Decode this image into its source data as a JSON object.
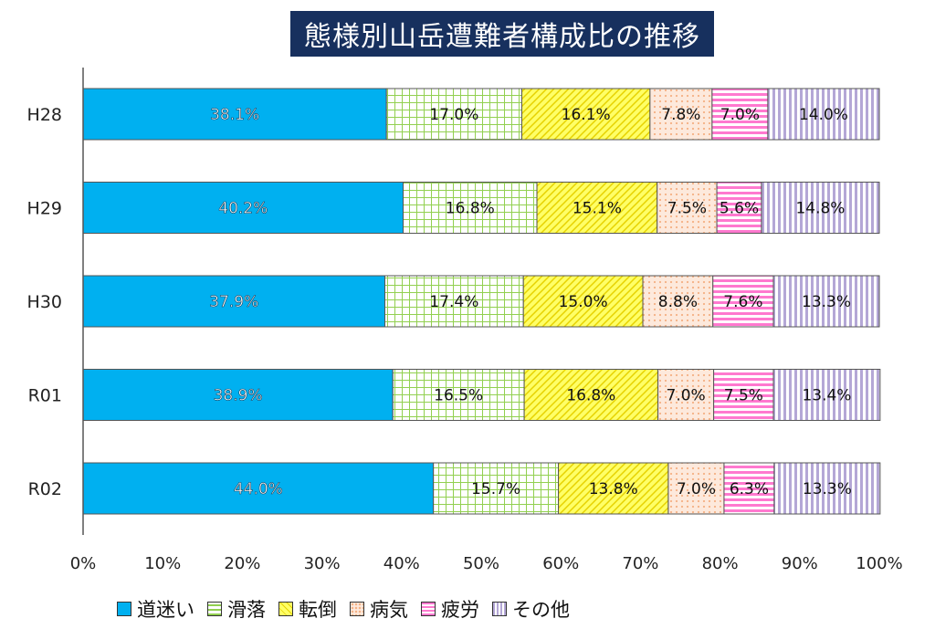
{
  "chart_data": {
    "type": "bar",
    "orientation": "horizontal",
    "stacked": true,
    "title": "態様別山岳遭難者構成比の推移",
    "categories": [
      "H28",
      "H29",
      "H30",
      "R01",
      "R02"
    ],
    "series": [
      {
        "name": "道迷い",
        "values": [
          38.1,
          40.2,
          37.9,
          38.9,
          44.0
        ],
        "color": "#00b0f0",
        "pattern": "solid"
      },
      {
        "name": "滑落",
        "values": [
          17.0,
          16.8,
          17.4,
          16.5,
          15.7
        ],
        "color": "#92d050",
        "pattern": "grid"
      },
      {
        "name": "転倒",
        "values": [
          16.1,
          15.1,
          15.0,
          16.8,
          13.8
        ],
        "color": "#ffff66",
        "pattern": "diagonal"
      },
      {
        "name": "病気",
        "values": [
          7.8,
          7.5,
          8.8,
          7.0,
          7.0
        ],
        "color": "#f4b084",
        "pattern": "dots"
      },
      {
        "name": "疲労",
        "values": [
          7.0,
          5.6,
          7.6,
          7.5,
          6.3
        ],
        "color": "#ff66cc",
        "pattern": "horizontal"
      },
      {
        "name": "その他",
        "values": [
          14.0,
          14.8,
          13.3,
          13.4,
          13.3
        ],
        "color": "#b4a7d6",
        "pattern": "vertical"
      }
    ],
    "xlim": [
      0,
      100
    ],
    "xticks": [
      "0%",
      "10%",
      "20%",
      "30%",
      "40%",
      "50%",
      "60%",
      "70%",
      "80%",
      "90%",
      "100%"
    ],
    "legend_position": "bottom"
  }
}
